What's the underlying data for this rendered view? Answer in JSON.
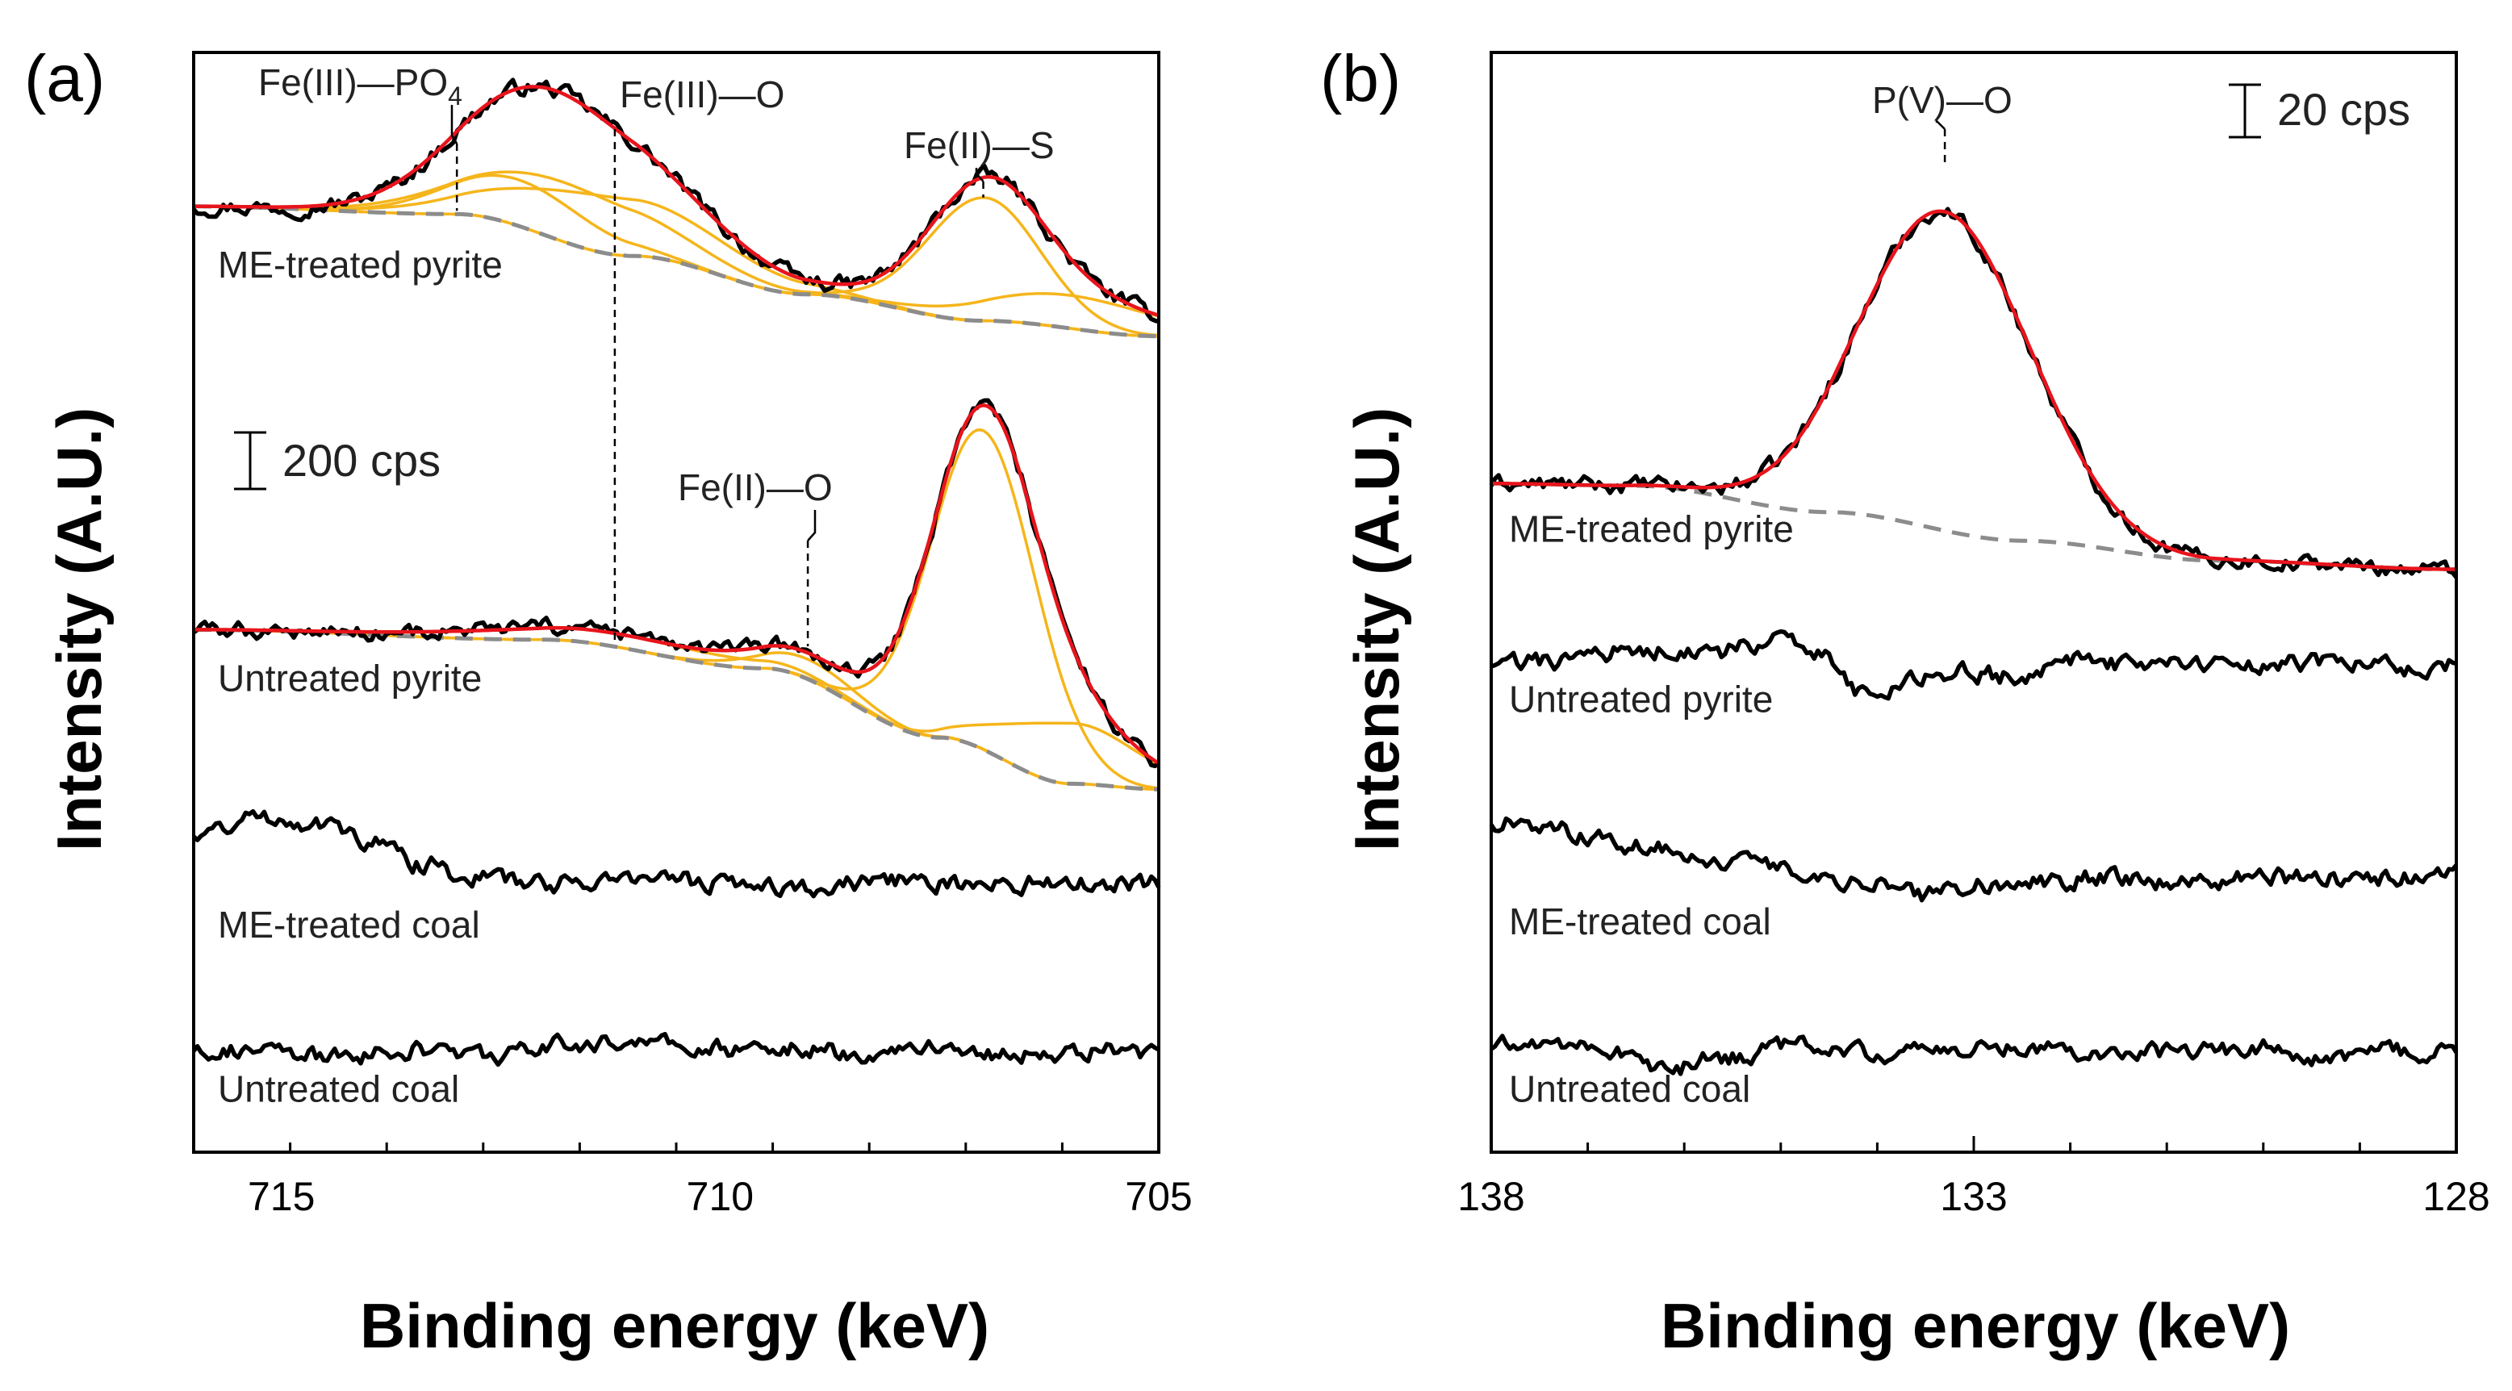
{
  "chart_data": [
    {
      "type": "line",
      "panel": "(a)",
      "xlabel": "Binding energy (keV)",
      "ylabel": "Intensity (A.U.)",
      "xlim": [
        716,
        705
      ],
      "ylim": [
        0,
        1
      ],
      "xticks": [
        715,
        710,
        705
      ],
      "scale_bar": "200 cps",
      "series": [
        {
          "name": "ME-treated pyrite",
          "baseline_y": 0.86,
          "raw_color": "#000000",
          "fit_color": "#e8141c",
          "component_color": "#f5b51b",
          "background_color": "#8c8c8c",
          "background": [
            {
              "x": 716,
              "y": 0.86
            },
            {
              "x": 713,
              "y": 0.853
            },
            {
              "x": 711,
              "y": 0.815
            },
            {
              "x": 709,
              "y": 0.78
            },
            {
              "x": 707,
              "y": 0.756
            },
            {
              "x": 705,
              "y": 0.742
            }
          ],
          "components": [
            {
              "center": 712.3,
              "width": 0.8,
              "height": 0.042
            },
            {
              "center": 711.8,
              "width": 1.1,
              "height": 0.054
            },
            {
              "center": 711.2,
              "width": 1.2,
              "height": 0.052
            },
            {
              "center": 707.0,
              "width": 0.64,
              "height": 0.112
            },
            {
              "center": 706.0,
              "width": 1.0,
              "height": 0.03
            }
          ]
        },
        {
          "name": "Untreated pyrite",
          "baseline_y": 0.475,
          "raw_color": "#000000",
          "fit_color": "#e8141c",
          "component_color": "#f5b51b",
          "background_color": "#8c8c8c",
          "background": [
            {
              "x": 716,
              "y": 0.475
            },
            {
              "x": 712,
              "y": 0.466
            },
            {
              "x": 709.5,
              "y": 0.44
            },
            {
              "x": 707.5,
              "y": 0.377
            },
            {
              "x": 706,
              "y": 0.335
            },
            {
              "x": 705,
              "y": 0.33
            }
          ],
          "components": [
            {
              "center": 711.2,
              "width": 1.6,
              "height": 0.012
            },
            {
              "center": 709.0,
              "width": 0.6,
              "height": 0.018
            },
            {
              "center": 707.0,
              "width": 0.6,
              "height": 0.29
            },
            {
              "center": 706.0,
              "width": 0.75,
              "height": 0.055
            }
          ]
        },
        {
          "name": "ME-treated coal",
          "baseline_y": 0.245,
          "raw_color": "#000000",
          "raw": [
            {
              "x": 716,
              "y": 0.29
            },
            {
              "x": 715.2,
              "y": 0.305
            },
            {
              "x": 714.6,
              "y": 0.3
            },
            {
              "x": 714,
              "y": 0.283
            },
            {
              "x": 713.4,
              "y": 0.262
            },
            {
              "x": 712.8,
              "y": 0.25
            },
            {
              "x": 712,
              "y": 0.244
            },
            {
              "x": 711,
              "y": 0.25
            },
            {
              "x": 710,
              "y": 0.245
            },
            {
              "x": 709,
              "y": 0.241
            },
            {
              "x": 708,
              "y": 0.247
            },
            {
              "x": 707,
              "y": 0.243
            },
            {
              "x": 706,
              "y": 0.246
            },
            {
              "x": 705,
              "y": 0.244
            }
          ]
        },
        {
          "name": "Untreated coal",
          "baseline_y": 0.092,
          "raw_color": "#000000",
          "raw": [
            {
              "x": 716,
              "y": 0.095
            },
            {
              "x": 715,
              "y": 0.09
            },
            {
              "x": 714.5,
              "y": 0.086
            },
            {
              "x": 713.5,
              "y": 0.093
            },
            {
              "x": 712.5,
              "y": 0.088
            },
            {
              "x": 711.8,
              "y": 0.097
            },
            {
              "x": 711,
              "y": 0.101
            },
            {
              "x": 710.2,
              "y": 0.093
            },
            {
              "x": 709.4,
              "y": 0.097
            },
            {
              "x": 708.5,
              "y": 0.09
            },
            {
              "x": 707.5,
              "y": 0.096
            },
            {
              "x": 706.5,
              "y": 0.088
            },
            {
              "x": 705.5,
              "y": 0.093
            },
            {
              "x": 705,
              "y": 0.089
            }
          ]
        }
      ],
      "peak_annotations": [
        {
          "label_main": "Fe(III)—PO",
          "label_sub": "4",
          "x": 713.0,
          "guide_top": 0.93,
          "guide_bottom": 0.856
        },
        {
          "label_main": "Fe(III)—O",
          "label_sub": "",
          "x": 711.2,
          "guide_top": 0.92,
          "guide_bottom": 0.462
        },
        {
          "label_main": "Fe(II)—S",
          "label_sub": "",
          "x": 707.0,
          "guide_top": 0.9,
          "guide_bottom": 0.868
        },
        {
          "label_main": "Fe(II)—O",
          "label_sub": "",
          "x": 709.0,
          "guide_top": 0.55,
          "guide_bottom": 0.46
        }
      ]
    },
    {
      "type": "line",
      "panel": "(b)",
      "xlabel": "Binding energy (keV)",
      "ylabel": "Intensity (A.U.)",
      "xlim": [
        138,
        128
      ],
      "ylim": [
        0,
        1
      ],
      "xticks": [
        138,
        133,
        128
      ],
      "scale_bar": "20 cps",
      "series": [
        {
          "name": "ME-treated pyrite",
          "baseline_y": 0.608,
          "raw_color": "#000000",
          "fit_color": "#e8141c",
          "background_color": "#8c8c8c",
          "background": [
            {
              "x": 138,
              "y": 0.608
            },
            {
              "x": 136.5,
              "y": 0.606
            },
            {
              "x": 134.5,
              "y": 0.582
            },
            {
              "x": 132.5,
              "y": 0.556
            },
            {
              "x": 130.5,
              "y": 0.538
            },
            {
              "x": 128,
              "y": 0.53
            }
          ],
          "components": [
            {
              "center": 133.3,
              "width": 0.88,
              "height": 0.29
            }
          ]
        },
        {
          "name": "Untreated pyrite",
          "baseline_y": 0.45,
          "raw_color": "#000000",
          "raw": [
            {
              "x": 138,
              "y": 0.444
            },
            {
              "x": 137.3,
              "y": 0.446
            },
            {
              "x": 136.5,
              "y": 0.458
            },
            {
              "x": 135.8,
              "y": 0.452
            },
            {
              "x": 135,
              "y": 0.465
            },
            {
              "x": 134.6,
              "y": 0.455
            },
            {
              "x": 134.2,
              "y": 0.418
            },
            {
              "x": 133.8,
              "y": 0.425
            },
            {
              "x": 133.2,
              "y": 0.436
            },
            {
              "x": 132.6,
              "y": 0.433
            },
            {
              "x": 132,
              "y": 0.447
            },
            {
              "x": 131.3,
              "y": 0.442
            },
            {
              "x": 130.6,
              "y": 0.446
            },
            {
              "x": 129.9,
              "y": 0.443
            },
            {
              "x": 129.2,
              "y": 0.446
            },
            {
              "x": 128.5,
              "y": 0.441
            },
            {
              "x": 128,
              "y": 0.444
            }
          ]
        },
        {
          "name": "ME-treated coal",
          "baseline_y": 0.245,
          "raw_color": "#000000",
          "raw": [
            {
              "x": 138,
              "y": 0.3
            },
            {
              "x": 137.2,
              "y": 0.292
            },
            {
              "x": 136.4,
              "y": 0.278
            },
            {
              "x": 135.6,
              "y": 0.266
            },
            {
              "x": 134.8,
              "y": 0.254
            },
            {
              "x": 134,
              "y": 0.245
            },
            {
              "x": 133.5,
              "y": 0.234
            },
            {
              "x": 133,
              "y": 0.243
            },
            {
              "x": 132.2,
              "y": 0.246
            },
            {
              "x": 131.6,
              "y": 0.251
            },
            {
              "x": 130.8,
              "y": 0.244
            },
            {
              "x": 130,
              "y": 0.25
            },
            {
              "x": 129,
              "y": 0.248
            },
            {
              "x": 128,
              "y": 0.254
            }
          ]
        },
        {
          "name": "Untreated coal",
          "baseline_y": 0.09,
          "raw_color": "#000000",
          "raw": [
            {
              "x": 138,
              "y": 0.096
            },
            {
              "x": 137.2,
              "y": 0.1
            },
            {
              "x": 136.6,
              "y": 0.091
            },
            {
              "x": 136.2,
              "y": 0.074
            },
            {
              "x": 135.6,
              "y": 0.086
            },
            {
              "x": 134.8,
              "y": 0.098
            },
            {
              "x": 134,
              "y": 0.09
            },
            {
              "x": 133.2,
              "y": 0.093
            },
            {
              "x": 132.4,
              "y": 0.097
            },
            {
              "x": 131.6,
              "y": 0.09
            },
            {
              "x": 130.8,
              "y": 0.093
            },
            {
              "x": 130,
              "y": 0.095
            },
            {
              "x": 129.4,
              "y": 0.084
            },
            {
              "x": 128.8,
              "y": 0.091
            },
            {
              "x": 128,
              "y": 0.09
            }
          ]
        }
      ],
      "peak_annotations": [
        {
          "label_main": "P(V)—O",
          "label_sub": "",
          "x": 133.3,
          "guide_top": 0.93,
          "guide_bottom": 0.9
        }
      ]
    }
  ]
}
